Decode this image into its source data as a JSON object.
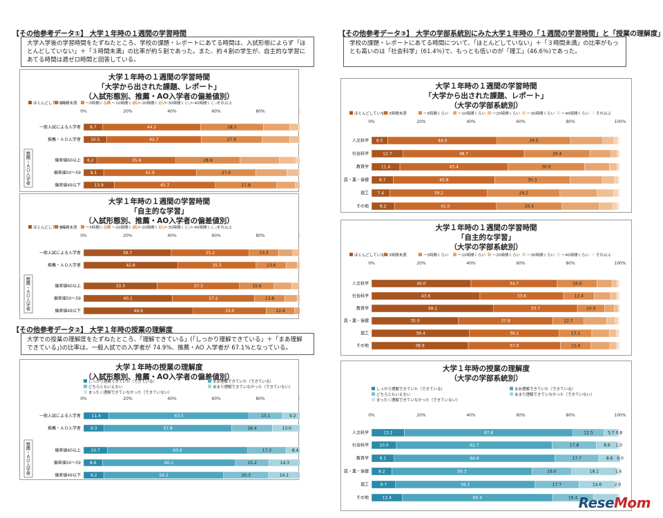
{
  "headings": {
    "left1": "【その他参考データ①】 大学１年時の１週間の学習時間",
    "left2": "【その他参考データ②】 大学１年時の授業の理解度",
    "right": "【その他参考データ③】 大学の学部系統別にみた大学１年時の「１週間の学習時間」と「授業の理解度」"
  },
  "notes": {
    "left1": "大学入学後の学習時間をたずねたところ、学校の課題・レポートにあてる時間は、入試形態によらず「ほとんどしていない」＋「３時間未満」の比率が約５割であった。また、約４割の学生が、自主的な学習にあてる時間は週ゼロ時間と回答している。",
    "left2": "大学での授業の理解度をたずねたところ、「理解できている」(「しっかり理解できている」＋「まあ理解できている」)の比率は、一般入試での入学者が 74.9%、推薦・AO 入学者が 67.1%となっている。",
    "right": "学校の課題・レポートにあてる時間について、「ほとんどしていない」＋「３時間未満」の比率がもっとも高いのは「社会科学」(61.4％)で、もっとも低いのが「理工」(46.6％)であった。"
  },
  "side_label": "推薦・ＡＯ入学者",
  "brand": {
    "prefix": "Rese",
    "suffix": "Mom"
  },
  "legend_time": [
    "ほとんどしていない",
    "3時間未満",
    "～5時間くらい",
    "～10時間くらい",
    "～20時間くらい",
    "～30時間くらい",
    "～40時間くらい",
    "それ以上"
  ],
  "legend_under": [
    "しっかり理解できていた（できている）",
    "まあ理解できていた（できている）",
    "どちらともいえない",
    "あまり理解できていなかった（できていない）",
    "まったく理解できていなかった（できていない）"
  ],
  "colors": {
    "time": [
      "#a9551f",
      "#c8692a",
      "#dc8a4b",
      "#e8a56f",
      "#f0be93",
      "#f5d2b3",
      "#f9e2cf",
      "#fcefe3"
    ],
    "under": [
      "#2b8aa8",
      "#4ea6be",
      "#7dbfd0",
      "#a7d4df",
      "#cfe7ee"
    ]
  },
  "chart_data": [
    {
      "type": "bar",
      "title": "大学１年時の１週間の学習時間\n「大学から出された課題、レポート」\n（入試形態別、推薦・AO入学者の偏差値別）",
      "legend": "legend_time",
      "axis": [
        "0%",
        "20%",
        "40%",
        "60%",
        "80%",
        "100%"
      ],
      "categories": [
        "一般入試による入学者",
        "推薦・ＡＯ入学者",
        "偏差値60以上",
        "偏差値50～59",
        "偏差値49以下"
      ],
      "values": [
        [
          8.7,
          44.2,
          28.5,
          12,
          4,
          1.5,
          0.6,
          0.5
        ],
        [
          10.5,
          42.7,
          27.6,
          12.5,
          4.5,
          1.2,
          0.5,
          0.5
        ],
        [
          6.2,
          35.6,
          28.9,
          18,
          7.5,
          2.5,
          0.8,
          0.5
        ],
        [
          9.1,
          41.9,
          27.0,
          14,
          5.5,
          1.5,
          0.5,
          0.5
        ],
        [
          13.9,
          45.7,
          27.8,
          8.5,
          2.8,
          0.8,
          0.3,
          0.2
        ]
      ],
      "labels": [
        [
          "8.7",
          "44.2",
          "28.5"
        ],
        [
          "10.5",
          "42.7",
          "27.6"
        ],
        [
          "6.2",
          "35.6",
          "28.9"
        ],
        [
          "9.1",
          "41.9",
          "27.0"
        ],
        [
          "13.9",
          "45.7",
          "27.8"
        ]
      ]
    },
    {
      "type": "bar",
      "title": "大学１年時の１週間の学習時間\n「自主的な学習」\n（入試形態別、推薦・AO入学者の偏差値別）",
      "legend": "legend_time",
      "axis": [
        "0%",
        "20%",
        "40%",
        "60%",
        "80%",
        "100%"
      ],
      "categories": [
        "一般入試による入学者",
        "推薦・ＡＯ入学者",
        "偏差値60以上",
        "偏差値50～59",
        "偏差値49以下"
      ],
      "values": [
        [
          39.7,
          35.2,
          13.3,
          6.5,
          3,
          1.3,
          0.5,
          0.5
        ],
        [
          42.6,
          35.5,
          13.6,
          5,
          2,
          0.7,
          0.3,
          0.3
        ],
        [
          33.3,
          37.3,
          15.6,
          8,
          3.5,
          1.3,
          0.5,
          0.5
        ],
        [
          40.1,
          37.2,
          13.8,
          5.5,
          2.2,
          0.7,
          0.3,
          0.2
        ],
        [
          49.6,
          33.0,
          12.9,
          2.8,
          1,
          0.4,
          0.2,
          0.1
        ]
      ],
      "labels": [
        [
          "39.7",
          "35.2",
          "13.3"
        ],
        [
          "42.6",
          "35.5",
          "13.6"
        ],
        [
          "33.3",
          "37.3",
          "15.6"
        ],
        [
          "40.1",
          "37.2",
          "13.8"
        ],
        [
          "49.6",
          "33.0",
          "12.9"
        ]
      ]
    },
    {
      "type": "bar",
      "title": "大学１年時の授業の理解度\n（入試形態別、推薦・AO入学者の偏差値別）",
      "legend": "legend_under",
      "axis": [
        "0%",
        "20%",
        "40%",
        "60%",
        "80%",
        "100%"
      ],
      "categories": [
        "一般入試による入学者",
        "推薦・ＡＯ入学者",
        "偏差値60以上",
        "偏差値50～59",
        "偏差値49以下"
      ],
      "values": [
        [
          11.4,
          63.5,
          15.1,
          9.2,
          0.8
        ],
        [
          9.3,
          57.8,
          18.4,
          13.0,
          1.6
        ],
        [
          10.7,
          63.6,
          17.3,
          8.4,
          0.0
        ],
        [
          8.6,
          60.1,
          15.2,
          14.3,
          1.8
        ],
        [
          9.2,
          54.1,
          20.3,
          14.1,
          2.2
        ]
      ],
      "labels": [
        [
          "11.4",
          "63.5",
          "15.1",
          "9.2",
          "0.8"
        ],
        [
          "9.3",
          "57.8",
          "18.4",
          "13.0",
          "1.6"
        ],
        [
          "10.7",
          "63.6",
          "17.3",
          "8.4",
          "0.0"
        ],
        [
          "8.6",
          "60.1",
          "15.2",
          "14.3",
          "1.8"
        ],
        [
          "9.2",
          "54.1",
          "20.3",
          "14.1",
          "2.2"
        ]
      ]
    },
    {
      "type": "bar",
      "title": "大学１年時の１週間の学習時間\n「大学から出された課題、レポート」\n（大学の学部系統別）",
      "legend": "legend_time",
      "axis": [
        "0%",
        "20%",
        "40%",
        "60%",
        "80%",
        "100%"
      ],
      "categories": [
        "人文科学",
        "社会科学",
        "教育学",
        "医・薬・保健",
        "理工",
        "その他"
      ],
      "values": [
        [
          6.5,
          44.0,
          29.5,
          13,
          4.5,
          1.5,
          0.5,
          0.5
        ],
        [
          12.7,
          48.7,
          26.4,
          8.5,
          2.5,
          0.7,
          0.3,
          0.2
        ],
        [
          11.4,
          43.4,
          30.9,
          10,
          3,
          0.8,
          0.3,
          0.2
        ],
        [
          8.7,
          40.8,
          30.3,
          13,
          5,
          1.5,
          0.4,
          0.3
        ],
        [
          7.4,
          39.2,
          29.2,
          15,
          6.5,
          1.8,
          0.5,
          0.4
        ],
        [
          9.2,
          41.0,
          26.4,
          15,
          5.5,
          1.8,
          0.6,
          0.5
        ]
      ],
      "labels": [
        [
          "6.5",
          "44.0",
          "29.5"
        ],
        [
          "12.7",
          "48.7",
          "26.4"
        ],
        [
          "11.4",
          "43.4",
          "30.9"
        ],
        [
          "8.7",
          "40.8",
          "30.3"
        ],
        [
          "7.4",
          "39.2",
          "29.2"
        ],
        [
          "9.2",
          "41.0",
          "26.4"
        ]
      ]
    },
    {
      "type": "bar",
      "title": "大学１年時の１週間の学習時間\n「自主的な学習」\n（大学の学部系統別）",
      "legend": "legend_time",
      "axis": [
        "0%",
        "20%",
        "40%",
        "60%",
        "80%",
        "100%"
      ],
      "categories": [
        "人文科学",
        "社会科学",
        "教育学",
        "医・薬・保健",
        "理工",
        "その他"
      ],
      "values": [
        [
          40.0,
          34.7,
          16.0,
          6,
          2,
          0.7,
          0.3,
          0.3
        ],
        [
          43.6,
          33.6,
          12.4,
          6.5,
          2.5,
          0.8,
          0.3,
          0.3
        ],
        [
          49.1,
          33.7,
          10.9,
          4,
          1.5,
          0.5,
          0.2,
          0.1
        ],
        [
          35.0,
          37.8,
          12.7,
          9,
          3.5,
          1.2,
          0.4,
          0.4
        ],
        [
          39.4,
          36.1,
          13.1,
          7,
          2.8,
          0.9,
          0.4,
          0.3
        ],
        [
          38.9,
          37.0,
          12.4,
          7.5,
          2.6,
          0.9,
          0.4,
          0.3
        ]
      ],
      "labels": [
        [
          "40.0",
          "34.7",
          "16.0"
        ],
        [
          "43.6",
          "33.6",
          "12.4"
        ],
        [
          "49.1",
          "33.7",
          "10.9"
        ],
        [
          "35.0",
          "37.8",
          "12.7"
        ],
        [
          "39.4",
          "36.1",
          "13.1"
        ],
        [
          "38.9",
          "37.0",
          "12.4"
        ]
      ]
    },
    {
      "type": "bar",
      "title": "大学１年時の授業の理解度\n（大学の学部系統別）",
      "legend": "legend_under",
      "axis": [
        "0%",
        "20%",
        "40%",
        "60%",
        "80%",
        "100%"
      ],
      "categories": [
        "人文科学",
        "社会科学",
        "教育学",
        "医・薬・保健",
        "理工",
        "その他"
      ],
      "values": [
        [
          13.2,
          67.8,
          12.5,
          5.7,
          0.8
        ],
        [
          10.0,
          62.7,
          17.8,
          8.6,
          1.0
        ],
        [
          9.1,
          64.6,
          17.7,
          8.6,
          0.0
        ],
        [
          8.2,
          56.3,
          16.0,
          18.1,
          1.4
        ],
        [
          9.7,
          56.1,
          17.7,
          14.6,
          2.0
        ],
        [
          12.4,
          60.4,
          16.4,
          9.9,
          0.9
        ]
      ],
      "labels": [
        [
          "13.2",
          "67.8",
          "12.5",
          "5.7",
          "0.8"
        ],
        [
          "10.0",
          "62.7",
          "17.8",
          "8.6",
          "1.0"
        ],
        [
          "9.1",
          "64.6",
          "17.7",
          "8.6",
          "0.0"
        ],
        [
          "8.2",
          "56.3",
          "16.0",
          "18.1",
          "1.4"
        ],
        [
          "9.7",
          "56.1",
          "17.7",
          "14.6",
          "2.0"
        ],
        [
          "12.4",
          "60.4",
          "16.4",
          "",
          ""
        ]
      ]
    }
  ]
}
